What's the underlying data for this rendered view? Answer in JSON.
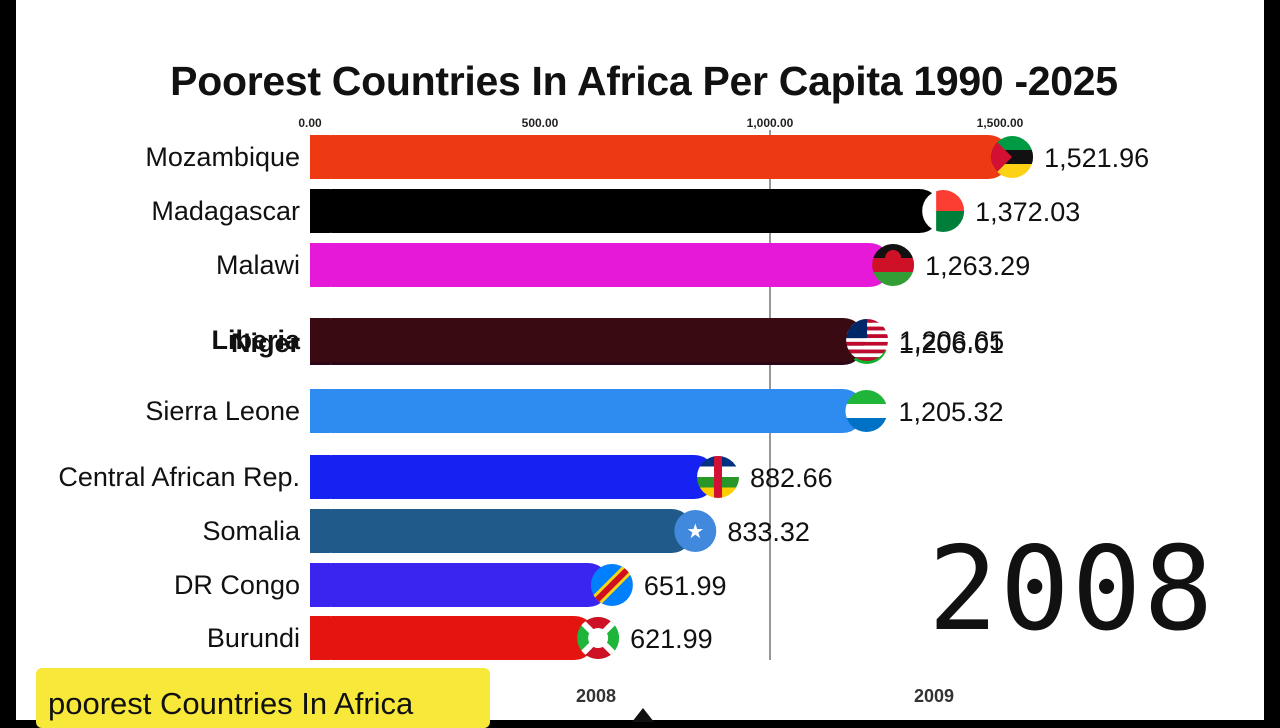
{
  "chart_data": {
    "type": "bar",
    "orientation": "horizontal",
    "title": "Poorest Countries In Africa Per Capita 1990 -2025",
    "xlim": [
      0,
      1500
    ],
    "x_ticks": [
      "0.00",
      "500.00",
      "1,000.00",
      "1,500.00"
    ],
    "x_tick_values": [
      0,
      500,
      1000,
      1500
    ],
    "grid": "vertical line at 1,000",
    "categories": [
      "Mozambique",
      "Madagascar",
      "Malawi",
      "Liberia",
      "Niger",
      "Sierra Leone",
      "Central African Rep.",
      "Somalia",
      "DR Congo",
      "Burundi"
    ],
    "values": [
      1521.96,
      1372.03,
      1263.29,
      1206.65,
      1206.01,
      1205.32,
      882.66,
      833.32,
      651.99,
      621.99
    ],
    "value_labels": [
      "1,521.96",
      "1,372.03",
      "1,263.29",
      "1,206.65",
      "1,206.01",
      "1,205.32",
      "882.66",
      "833.32",
      "651.99",
      "621.99"
    ],
    "colors": [
      "#ee3a12",
      "#000000",
      "#e619d8",
      "#3a0a12",
      "#2a0616",
      "#2e8bf0",
      "#1622f2",
      "#1f5a8a",
      "#3a24f0",
      "#e61410"
    ],
    "flag_icons": [
      "flag-mozambique-icon",
      "flag-madagascar-icon",
      "flag-malawi-icon",
      "flag-liberia-icon",
      "flag-niger-icon",
      "flag-sierra-leone-icon",
      "flag-central-african-rep-icon",
      "flag-somalia-icon",
      "flag-dr-congo-icon",
      "flag-burundi-icon"
    ]
  },
  "year": "2008",
  "caption": "poorest Countries In Africa",
  "timeline": {
    "labels": [
      "2008",
      "2009"
    ]
  }
}
